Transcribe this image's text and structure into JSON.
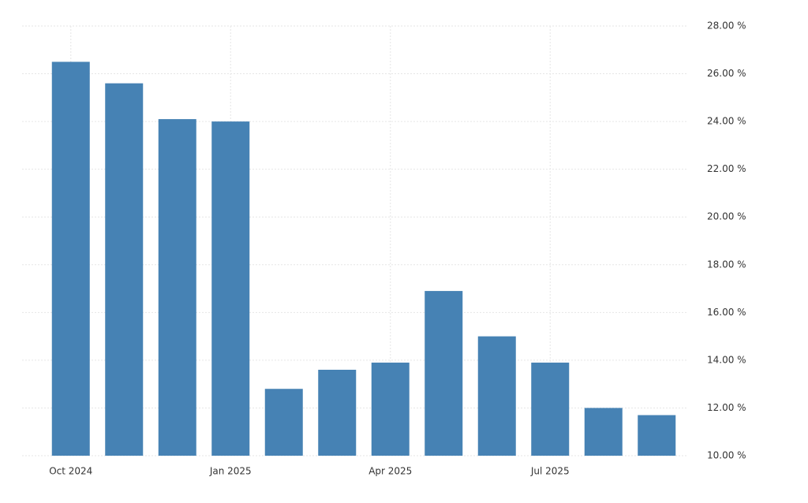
{
  "chart_data": {
    "type": "bar",
    "categories": [
      "Oct 2024",
      null,
      null,
      "Jan 2025",
      null,
      null,
      "Apr 2025",
      null,
      null,
      "Jul 2025",
      null,
      null
    ],
    "values": [
      26.5,
      25.6,
      24.1,
      24.0,
      12.8,
      13.6,
      13.9,
      16.9,
      15.0,
      13.9,
      12.0,
      11.7
    ],
    "color": "#4682b4",
    "ylim": [
      10,
      28
    ],
    "yticks": [
      {
        "value": 10,
        "label": "10.00 %"
      },
      {
        "value": 12,
        "label": "12.00 %"
      },
      {
        "value": 14,
        "label": "14.00 %"
      },
      {
        "value": 16,
        "label": "16.00 %"
      },
      {
        "value": 18,
        "label": "18.00 %"
      },
      {
        "value": 20,
        "label": "20.00 %"
      },
      {
        "value": 22,
        "label": "22.00 %"
      },
      {
        "value": 24,
        "label": "24.00 %"
      },
      {
        "value": 26,
        "label": "26.00 %"
      },
      {
        "value": 28,
        "label": "28.00 %"
      }
    ],
    "grid": true
  }
}
